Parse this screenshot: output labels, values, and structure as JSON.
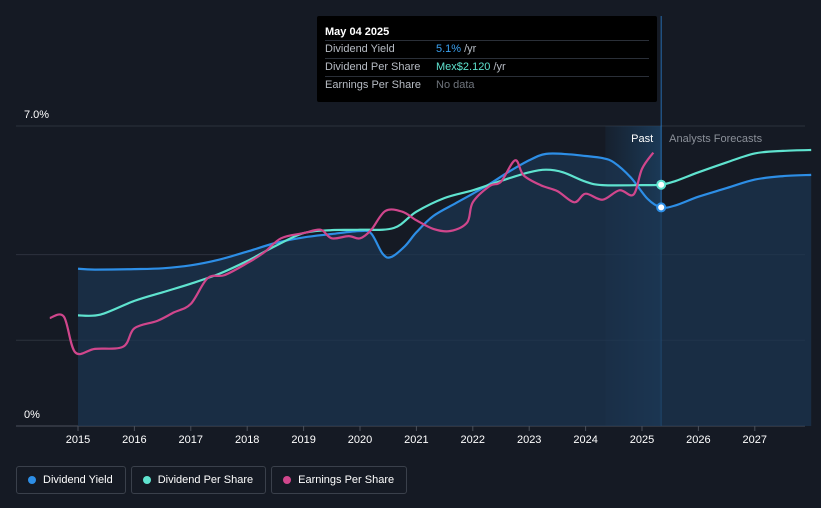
{
  "chart_data": {
    "type": "line",
    "x_ticks": [
      "2015",
      "2016",
      "2017",
      "2018",
      "2019",
      "2020",
      "2021",
      "2022",
      "2023",
      "2024",
      "2025",
      "2026",
      "2027"
    ],
    "y_ticks": [
      "7.0%",
      "0%"
    ],
    "ylim": [
      0,
      7.0
    ],
    "region_labels": {
      "past": "Past",
      "forecast": "Analysts Forecasts"
    },
    "highlight_year": 2025.34,
    "series": [
      {
        "name": "Dividend Yield",
        "color": "#2d8ee6",
        "area": true,
        "points": [
          [
            2015.0,
            3.67
          ],
          [
            2015.3,
            3.65
          ],
          [
            2016.0,
            3.66
          ],
          [
            2016.5,
            3.68
          ],
          [
            2017.0,
            3.75
          ],
          [
            2017.5,
            3.88
          ],
          [
            2018.0,
            4.07
          ],
          [
            2018.5,
            4.27
          ],
          [
            2019.0,
            4.4
          ],
          [
            2019.5,
            4.48
          ],
          [
            2020.0,
            4.55
          ],
          [
            2020.2,
            4.49
          ],
          [
            2020.4,
            4.02
          ],
          [
            2020.55,
            3.94
          ],
          [
            2020.8,
            4.2
          ],
          [
            2021.0,
            4.52
          ],
          [
            2021.3,
            4.9
          ],
          [
            2021.7,
            5.2
          ],
          [
            2022.0,
            5.42
          ],
          [
            2022.3,
            5.65
          ],
          [
            2022.6,
            5.9
          ],
          [
            2023.0,
            6.2
          ],
          [
            2023.3,
            6.35
          ],
          [
            2023.7,
            6.34
          ],
          [
            2024.0,
            6.3
          ],
          [
            2024.3,
            6.25
          ],
          [
            2024.5,
            6.15
          ],
          [
            2024.8,
            5.8
          ],
          [
            2025.1,
            5.3
          ],
          [
            2025.34,
            5.1
          ],
          [
            2025.6,
            5.15
          ],
          [
            2026.0,
            5.35
          ],
          [
            2026.5,
            5.55
          ],
          [
            2027.0,
            5.75
          ],
          [
            2027.5,
            5.83
          ],
          [
            2028.0,
            5.86
          ]
        ]
      },
      {
        "name": "Dividend Per Share",
        "color": "#5fe3cf",
        "points": [
          [
            2015.0,
            2.58
          ],
          [
            2015.4,
            2.6
          ],
          [
            2016.0,
            2.92
          ],
          [
            2016.5,
            3.12
          ],
          [
            2017.0,
            3.32
          ],
          [
            2017.5,
            3.55
          ],
          [
            2018.0,
            3.85
          ],
          [
            2018.5,
            4.2
          ],
          [
            2019.0,
            4.5
          ],
          [
            2019.5,
            4.57
          ],
          [
            2020.0,
            4.58
          ],
          [
            2020.6,
            4.62
          ],
          [
            2021.0,
            5.0
          ],
          [
            2021.5,
            5.32
          ],
          [
            2022.0,
            5.5
          ],
          [
            2022.5,
            5.72
          ],
          [
            2023.0,
            5.92
          ],
          [
            2023.3,
            5.98
          ],
          [
            2023.6,
            5.92
          ],
          [
            2024.0,
            5.7
          ],
          [
            2024.3,
            5.62
          ],
          [
            2025.0,
            5.62
          ],
          [
            2025.34,
            5.63
          ],
          [
            2025.6,
            5.72
          ],
          [
            2026.0,
            5.92
          ],
          [
            2026.5,
            6.15
          ],
          [
            2027.0,
            6.36
          ],
          [
            2027.5,
            6.42
          ],
          [
            2028.0,
            6.44
          ]
        ]
      },
      {
        "name": "Earnings Per Share",
        "color": "#d0468c",
        "points": [
          [
            2014.5,
            2.52
          ],
          [
            2014.75,
            2.55
          ],
          [
            2014.95,
            1.72
          ],
          [
            2015.3,
            1.8
          ],
          [
            2015.8,
            1.85
          ],
          [
            2016.0,
            2.28
          ],
          [
            2016.4,
            2.45
          ],
          [
            2016.7,
            2.65
          ],
          [
            2017.0,
            2.85
          ],
          [
            2017.3,
            3.45
          ],
          [
            2017.6,
            3.52
          ],
          [
            2018.0,
            3.8
          ],
          [
            2018.3,
            4.05
          ],
          [
            2018.6,
            4.38
          ],
          [
            2019.0,
            4.5
          ],
          [
            2019.3,
            4.58
          ],
          [
            2019.5,
            4.38
          ],
          [
            2019.8,
            4.43
          ],
          [
            2020.0,
            4.38
          ],
          [
            2020.2,
            4.58
          ],
          [
            2020.45,
            5.02
          ],
          [
            2020.75,
            5.0
          ],
          [
            2021.0,
            4.8
          ],
          [
            2021.3,
            4.6
          ],
          [
            2021.6,
            4.55
          ],
          [
            2021.9,
            4.75
          ],
          [
            2022.0,
            5.22
          ],
          [
            2022.3,
            5.6
          ],
          [
            2022.5,
            5.7
          ],
          [
            2022.75,
            6.2
          ],
          [
            2022.9,
            5.85
          ],
          [
            2023.2,
            5.62
          ],
          [
            2023.5,
            5.48
          ],
          [
            2023.8,
            5.22
          ],
          [
            2024.0,
            5.42
          ],
          [
            2024.3,
            5.28
          ],
          [
            2024.6,
            5.5
          ],
          [
            2024.85,
            5.4
          ],
          [
            2025.0,
            6.0
          ],
          [
            2025.2,
            6.38
          ]
        ]
      }
    ]
  },
  "tooltip": {
    "date": "May 04 2025",
    "rows": [
      {
        "label": "Dividend Yield",
        "value": "5.1%",
        "unit": "/yr"
      },
      {
        "label": "Dividend Per Share",
        "value": "Mex$2.120",
        "unit": "/yr"
      },
      {
        "label": "Earnings Per Share",
        "value": "No data",
        "unit": ""
      }
    ]
  },
  "legend": [
    "Dividend Yield",
    "Dividend Per Share",
    "Earnings Per Share"
  ],
  "colors": {
    "dividend_yield": "#2d8ee6",
    "dividend_per_share": "#5fe3cf",
    "earnings_per_share": "#d0468c"
  }
}
